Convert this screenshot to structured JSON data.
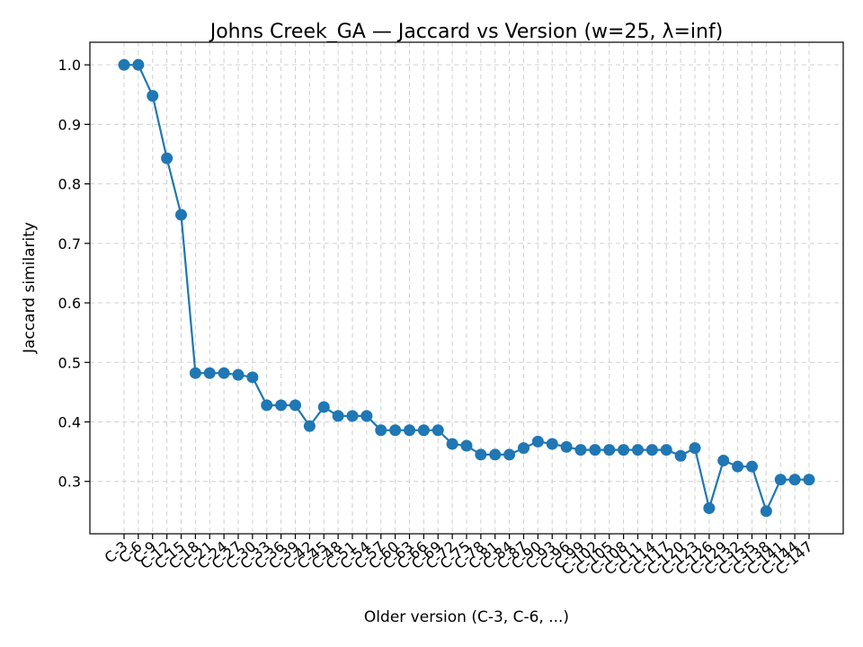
{
  "chart_data": {
    "type": "line",
    "title": "Johns Creek_GA — Jaccard vs Version (w=25, λ=inf)",
    "xlabel": "Older version (C-3, C-6, ...)",
    "ylabel": "Jaccard similarity",
    "ylim": [
      0.212,
      1.038
    ],
    "yticks": [
      0.3,
      0.4,
      0.5,
      0.6,
      0.7,
      0.8,
      0.9,
      1.0
    ],
    "ytick_labels": [
      "0.3",
      "0.4",
      "0.5",
      "0.6",
      "0.7",
      "0.8",
      "0.9",
      "1.0"
    ],
    "grid": true,
    "color": "#1f77b4",
    "categories": [
      "C-3",
      "C-6",
      "C-9",
      "C-12",
      "C-15",
      "C-18",
      "C-21",
      "C-24",
      "C-27",
      "C-30",
      "C-33",
      "C-36",
      "C-39",
      "C-42",
      "C-45",
      "C-48",
      "C-51",
      "C-54",
      "C-57",
      "C-60",
      "C-63",
      "C-66",
      "C-69",
      "C-72",
      "C-75",
      "C-78",
      "C-81",
      "C-84",
      "C-87",
      "C-90",
      "C-93",
      "C-96",
      "C-99",
      "C-102",
      "C-105",
      "C-108",
      "C-111",
      "C-114",
      "C-117",
      "C-120",
      "C-123",
      "C-126",
      "C-129",
      "C-132",
      "C-135",
      "C-138",
      "C-141",
      "C-144",
      "C-147"
    ],
    "values": [
      1.0,
      1.0,
      0.948,
      0.843,
      0.748,
      0.482,
      0.482,
      0.482,
      0.479,
      0.475,
      0.428,
      0.428,
      0.428,
      0.393,
      0.425,
      0.41,
      0.41,
      0.41,
      0.386,
      0.386,
      0.386,
      0.386,
      0.386,
      0.363,
      0.36,
      0.345,
      0.345,
      0.345,
      0.356,
      0.367,
      0.363,
      0.358,
      0.353,
      0.353,
      0.353,
      0.353,
      0.353,
      0.353,
      0.353,
      0.343,
      0.356,
      0.255,
      0.335,
      0.325,
      0.325,
      0.25,
      0.303,
      0.303,
      0.303
    ]
  }
}
